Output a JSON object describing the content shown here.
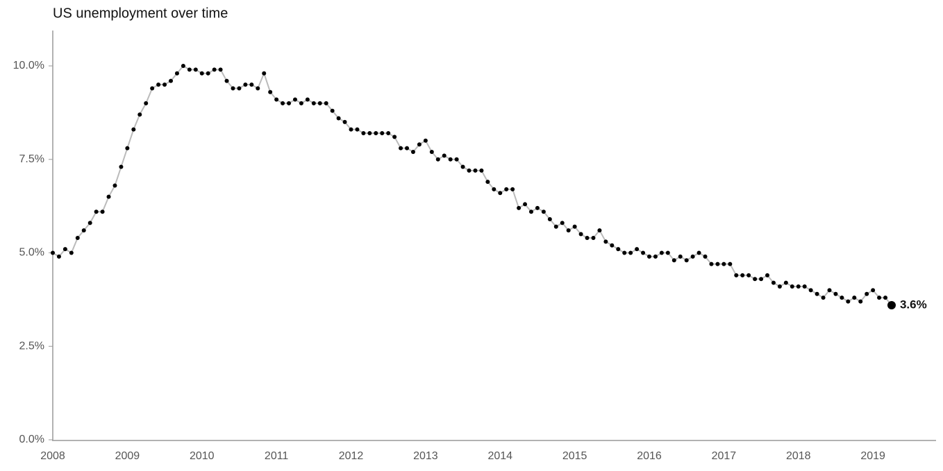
{
  "chart_data": {
    "type": "line",
    "title": "US unemployment over time",
    "categories": [
      "2008",
      null,
      null,
      null,
      null,
      null,
      null,
      null,
      null,
      null,
      null,
      null,
      "2009",
      null,
      null,
      null,
      null,
      null,
      null,
      null,
      null,
      null,
      null,
      null,
      "2010",
      null,
      null,
      null,
      null,
      null,
      null,
      null,
      null,
      null,
      null,
      null,
      "2011",
      null,
      null,
      null,
      null,
      null,
      null,
      null,
      null,
      null,
      null,
      null,
      "2012",
      null,
      null,
      null,
      null,
      null,
      null,
      null,
      null,
      null,
      null,
      null,
      "2013",
      null,
      null,
      null,
      null,
      null,
      null,
      null,
      null,
      null,
      null,
      null,
      "2014",
      null,
      null,
      null,
      null,
      null,
      null,
      null,
      null,
      null,
      null,
      null,
      "2015",
      null,
      null,
      null,
      null,
      null,
      null,
      null,
      null,
      null,
      null,
      null,
      "2016",
      null,
      null,
      null,
      null,
      null,
      null,
      null,
      null,
      null,
      null,
      null,
      "2017",
      null,
      null,
      null,
      null,
      null,
      null,
      null,
      null,
      null,
      null,
      null,
      "2018",
      null,
      null,
      null,
      null,
      null,
      null,
      null,
      null,
      null,
      null,
      null,
      "2019",
      null,
      null,
      null
    ],
    "values": [
      5.0,
      4.9,
      5.1,
      5.0,
      5.4,
      5.6,
      5.8,
      6.1,
      6.1,
      6.5,
      6.8,
      7.3,
      7.8,
      8.3,
      8.7,
      9.0,
      9.4,
      9.5,
      9.5,
      9.6,
      9.8,
      10.0,
      9.9,
      9.9,
      9.8,
      9.8,
      9.9,
      9.9,
      9.6,
      9.4,
      9.4,
      9.5,
      9.5,
      9.4,
      9.8,
      9.3,
      9.1,
      9.0,
      9.0,
      9.1,
      9.0,
      9.1,
      9.0,
      9.0,
      9.0,
      8.8,
      8.6,
      8.5,
      8.3,
      8.3,
      8.2,
      8.2,
      8.2,
      8.2,
      8.2,
      8.1,
      7.8,
      7.8,
      7.7,
      7.9,
      8.0,
      7.7,
      7.5,
      7.6,
      7.5,
      7.5,
      7.3,
      7.2,
      7.2,
      7.2,
      6.9,
      6.7,
      6.6,
      6.7,
      6.7,
      6.2,
      6.3,
      6.1,
      6.2,
      6.1,
      5.9,
      5.7,
      5.8,
      5.6,
      5.7,
      5.5,
      5.4,
      5.4,
      5.6,
      5.3,
      5.2,
      5.1,
      5.0,
      5.0,
      5.1,
      5.0,
      4.9,
      4.9,
      5.0,
      5.0,
      4.8,
      4.9,
      4.8,
      4.9,
      5.0,
      4.9,
      4.7,
      4.7,
      4.7,
      4.7,
      4.4,
      4.4,
      4.4,
      4.3,
      4.3,
      4.4,
      4.2,
      4.1,
      4.2,
      4.1,
      4.1,
      4.1,
      4.0,
      3.9,
      3.8,
      4.0,
      3.9,
      3.8,
      3.7,
      3.8,
      3.7,
      3.9,
      4.0,
      3.8,
      3.8,
      3.6
    ],
    "value_labels": [
      null,
      null,
      null,
      null,
      null,
      null,
      null,
      null,
      null,
      null,
      null,
      null,
      null,
      null,
      null,
      null,
      null,
      null,
      null,
      null,
      null,
      null,
      null,
      null,
      null,
      null,
      null,
      null,
      null,
      null,
      null,
      null,
      null,
      null,
      null,
      null,
      null,
      null,
      null,
      null,
      null,
      null,
      null,
      null,
      null,
      null,
      null,
      null,
      null,
      null,
      null,
      null,
      null,
      null,
      null,
      null,
      null,
      null,
      null,
      null,
      null,
      null,
      null,
      null,
      null,
      null,
      null,
      null,
      null,
      null,
      null,
      null,
      null,
      null,
      null,
      null,
      null,
      null,
      null,
      null,
      null,
      null,
      null,
      null,
      null,
      null,
      null,
      null,
      null,
      null,
      null,
      null,
      null,
      null,
      null,
      null,
      null,
      null,
      null,
      null,
      null,
      null,
      null,
      null,
      null,
      null,
      null,
      null,
      null,
      null,
      null,
      null,
      null,
      null,
      null,
      null,
      null,
      null,
      null,
      null,
      null,
      null,
      null,
      null,
      null,
      null,
      null,
      null,
      null,
      null,
      null,
      null,
      null,
      null,
      null,
      "3.6%"
    ],
    "color": "#000000",
    "line_color": "#bbbbbb",
    "ylim": [
      0,
      10.9
    ],
    "yticks": [
      {
        "value": 0,
        "label": "0.0%"
      },
      {
        "value": 2.5,
        "label": "2.5%"
      },
      {
        "value": 5,
        "label": "5.0%"
      },
      {
        "value": 7.5,
        "label": "7.5%"
      },
      {
        "value": 10,
        "label": "10.0%"
      }
    ],
    "grid": false
  }
}
